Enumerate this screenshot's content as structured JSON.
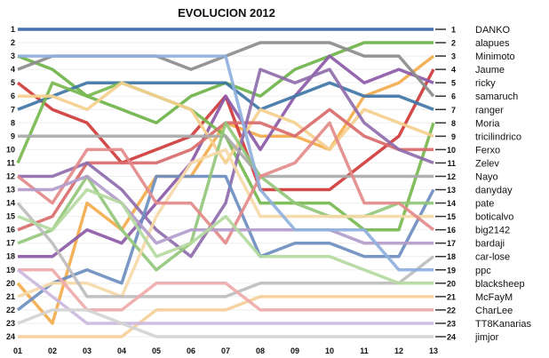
{
  "chart_data": {
    "type": "line",
    "title": "EVOLUCION 2012",
    "x": [
      "01",
      "02",
      "03",
      "04",
      "05",
      "06",
      "07",
      "08",
      "09",
      "10",
      "11",
      "12",
      "13"
    ],
    "ylim": [
      1,
      24
    ],
    "y_inverted": true,
    "y_ticks": [
      1,
      2,
      3,
      4,
      5,
      6,
      7,
      8,
      9,
      10,
      11,
      12,
      13,
      14,
      15,
      16,
      17,
      18,
      19,
      20,
      21,
      22,
      23,
      24
    ],
    "legend_position": "right",
    "series": [
      {
        "name": "DANKO",
        "color": "#3a64a8",
        "values": [
          1,
          1,
          1,
          1,
          1,
          1,
          1,
          1,
          1,
          1,
          1,
          1,
          1
        ]
      },
      {
        "name": "alapues",
        "color": "#6fb34a",
        "values": [
          3,
          4,
          6,
          7,
          8,
          6,
          5,
          6,
          4,
          3,
          2,
          2,
          2
        ]
      },
      {
        "name": "Minimoto",
        "color": "#f3ad4d",
        "values": [
          20,
          23,
          14,
          16,
          12,
          12,
          8,
          9,
          9,
          10,
          6,
          5,
          3
        ]
      },
      {
        "name": "Jaume",
        "color": "#cf3b3b",
        "values": [
          5,
          7,
          8,
          11,
          10,
          9,
          6,
          13,
          13,
          13,
          11,
          9,
          4
        ]
      },
      {
        "name": "ricky",
        "color": "#8c5aa8",
        "values": [
          18,
          18,
          16,
          17,
          14,
          11,
          6,
          10,
          6,
          3,
          5,
          4,
          5
        ]
      },
      {
        "name": "samaruch",
        "color": "#8c8c8c",
        "values": [
          4,
          3,
          3,
          3,
          3,
          4,
          3,
          2,
          2,
          2,
          3,
          3,
          6
        ]
      },
      {
        "name": "ranger",
        "color": "#3f76a6",
        "values": [
          7,
          6,
          5,
          5,
          5,
          5,
          5,
          7,
          6,
          5,
          6,
          6,
          7
        ]
      },
      {
        "name": "Moria",
        "color": "#77b94f",
        "values": [
          11,
          5,
          6,
          5,
          6,
          7,
          9,
          14,
          14,
          14,
          16,
          16,
          8
        ]
      },
      {
        "name": "tricilindrico",
        "color": "#f5cf8e",
        "values": [
          6,
          6,
          7,
          5,
          6,
          7,
          11,
          7,
          8,
          10,
          7,
          8,
          9
        ]
      },
      {
        "name": "Ferxo",
        "color": "#d96b6b",
        "values": [
          16,
          15,
          11,
          11,
          11,
          10,
          8,
          8,
          9,
          7,
          9,
          10,
          10
        ]
      },
      {
        "name": "Zelev",
        "color": "#8e6cab",
        "values": [
          12,
          12,
          11,
          13,
          16,
          18,
          14,
          4,
          5,
          4,
          8,
          10,
          11
        ]
      },
      {
        "name": "Nayo",
        "color": "#aaaaaa",
        "values": [
          9,
          9,
          9,
          9,
          9,
          9,
          9,
          12,
          12,
          12,
          12,
          12,
          12
        ]
      },
      {
        "name": "danyday",
        "color": "#6e8ec0",
        "values": [
          22,
          20,
          19,
          20,
          12,
          12,
          12,
          18,
          17,
          17,
          18,
          18,
          13
        ]
      },
      {
        "name": "pate",
        "color": "#93c77a",
        "values": [
          17,
          16,
          12,
          16,
          19,
          17,
          8,
          12,
          14,
          15,
          15,
          14,
          14
        ]
      },
      {
        "name": "boticalvo",
        "color": "#f6d9a8",
        "values": [
          21,
          20,
          20,
          21,
          15,
          11,
          10,
          15,
          15,
          15,
          15,
          15,
          15
        ]
      },
      {
        "name": "big2142",
        "color": "#e38a8a",
        "values": [
          12,
          14,
          10,
          10,
          14,
          14,
          17,
          12,
          11,
          8,
          14,
          14,
          16
        ]
      },
      {
        "name": "bardaji",
        "color": "#b39ccb",
        "values": [
          13,
          13,
          12,
          14,
          17,
          16,
          16,
          16,
          16,
          16,
          17,
          17,
          17
        ]
      },
      {
        "name": "car-lose",
        "color": "#bdbdbd",
        "values": [
          14,
          17,
          21,
          21,
          21,
          21,
          21,
          20,
          20,
          20,
          20,
          20,
          18
        ]
      },
      {
        "name": "ppc",
        "color": "#8fb0dd",
        "values": [
          3,
          3,
          3,
          3,
          3,
          3,
          3,
          13,
          16,
          16,
          16,
          19,
          19
        ]
      },
      {
        "name": "blacksheep",
        "color": "#b4d9a0",
        "values": [
          15,
          16,
          13,
          14,
          18,
          17,
          15,
          18,
          18,
          18,
          19,
          20,
          20
        ]
      },
      {
        "name": "McFayM",
        "color": "#f6cf9a",
        "values": [
          24,
          24,
          24,
          24,
          22,
          22,
          22,
          21,
          21,
          21,
          21,
          21,
          21
        ]
      },
      {
        "name": "CharLee",
        "color": "#eeaaaa",
        "values": [
          19,
          19,
          22,
          22,
          20,
          20,
          20,
          22,
          22,
          22,
          22,
          22,
          22
        ]
      },
      {
        "name": "TT8Kanarias",
        "color": "#cbb8de",
        "values": [
          19,
          21,
          23,
          23,
          23,
          23,
          23,
          23,
          23,
          23,
          23,
          23,
          23
        ]
      },
      {
        "name": "jimjor",
        "color": "#d4d4d4",
        "values": [
          23,
          22,
          22,
          23,
          24,
          24,
          24,
          24,
          24,
          24,
          24,
          24,
          24
        ]
      }
    ]
  }
}
